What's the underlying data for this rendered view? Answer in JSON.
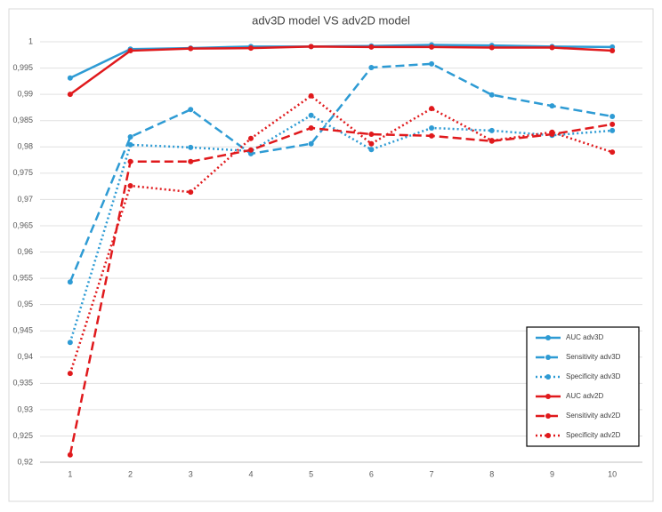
{
  "chart_data": {
    "type": "line",
    "title": "adv3D model VS adv2D model",
    "categories": [
      "1",
      "2",
      "3",
      "4",
      "5",
      "6",
      "7",
      "8",
      "9",
      "10"
    ],
    "ylim": [
      0.92,
      1
    ],
    "yticks": [
      {
        "value": 0.92,
        "label": "0,92"
      },
      {
        "value": 0.925,
        "label": "0,925"
      },
      {
        "value": 0.93,
        "label": "0,93"
      },
      {
        "value": 0.935,
        "label": "0,935"
      },
      {
        "value": 0.94,
        "label": "0,94"
      },
      {
        "value": 0.945,
        "label": "0,945"
      },
      {
        "value": 0.95,
        "label": "0,95"
      },
      {
        "value": 0.955,
        "label": "0,955"
      },
      {
        "value": 0.96,
        "label": "0,96"
      },
      {
        "value": 0.965,
        "label": "0,965"
      },
      {
        "value": 0.97,
        "label": "0,97"
      },
      {
        "value": 0.975,
        "label": "0,975"
      },
      {
        "value": 0.98,
        "label": "0,98"
      },
      {
        "value": 0.985,
        "label": "0,985"
      },
      {
        "value": 0.99,
        "label": "0,99"
      },
      {
        "value": 0.995,
        "label": "0,995"
      },
      1
    ],
    "grid": true,
    "legend": "bottom-right",
    "series": [
      {
        "name": "AUC adv3D",
        "color": "#2e9bd4",
        "style": "solid",
        "values": [
          0.9931,
          0.9986,
          0.9988,
          0.9991,
          0.9991,
          0.9992,
          0.9994,
          0.9993,
          0.9991,
          0.999
        ]
      },
      {
        "name": "Sensitivity adv3D",
        "color": "#2e9bd4",
        "style": "dashed",
        "values": [
          0.9543,
          0.9819,
          0.9871,
          0.9787,
          0.9806,
          0.9951,
          0.9958,
          0.9899,
          0.9878,
          0.9858
        ]
      },
      {
        "name": "Specificity adv3D",
        "color": "#2e9bd4",
        "style": "dotted",
        "values": [
          0.9428,
          0.9804,
          0.9799,
          0.9792,
          0.986,
          0.9795,
          0.9836,
          0.9831,
          0.9822,
          0.9831
        ]
      },
      {
        "name": "AUC adv2D",
        "color": "#e0191c",
        "style": "solid",
        "values": [
          0.99,
          0.9983,
          0.9987,
          0.9988,
          0.9991,
          0.999,
          0.999,
          0.9989,
          0.9989,
          0.9983
        ]
      },
      {
        "name": "Sensitivity adv2D",
        "color": "#e0191c",
        "style": "dashed",
        "values": [
          0.9214,
          0.9772,
          0.9772,
          0.9794,
          0.9836,
          0.9824,
          0.9821,
          0.9811,
          0.9824,
          0.9843
        ]
      },
      {
        "name": "Specificity adv2D",
        "color": "#e0191c",
        "style": "dotted",
        "values": [
          0.9369,
          0.9726,
          0.9714,
          0.9816,
          0.9897,
          0.9806,
          0.9873,
          0.9812,
          0.9828,
          0.979
        ]
      }
    ]
  }
}
